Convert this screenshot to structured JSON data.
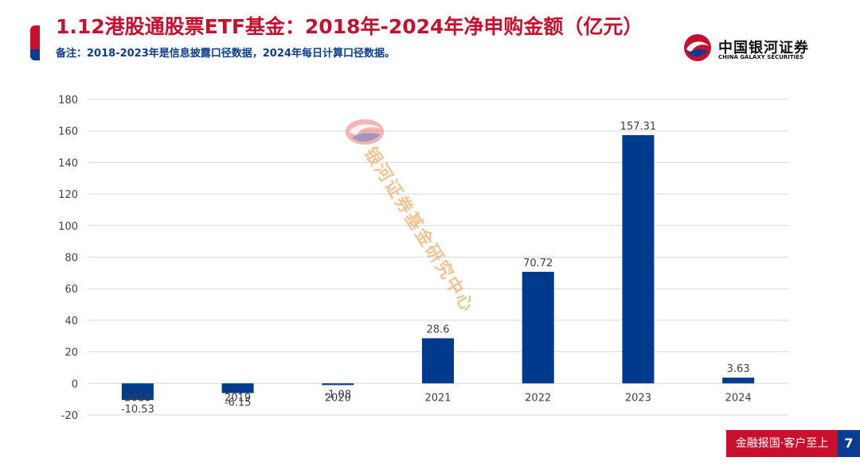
{
  "header": {
    "title": "1.12港股通股票ETF基金：2018年-2024年净申购金额（亿元）",
    "note": "备注：2018-2023年是信息披露口径数据，2024年每日计算口径数据。"
  },
  "logo": {
    "name_cn": "中国银河证券",
    "name_en": "CHINA GALAXY SECURITIES",
    "icon": "galaxy-logo-icon"
  },
  "watermark": {
    "text": "银河证券基金研究中心"
  },
  "footer": {
    "slogan": "金融报国·客户至上",
    "page": "7"
  },
  "colors": {
    "bar": "#003a8c",
    "title_red": "#c8102e",
    "note_blue": "#0a3d8f",
    "grid": "#d9d9d9"
  },
  "chart_data": {
    "type": "bar",
    "title": "",
    "xlabel": "",
    "ylabel": "",
    "categories": [
      "2018",
      "2019",
      "2020",
      "2021",
      "2022",
      "2023",
      "2024"
    ],
    "values": [
      -10.53,
      -6.15,
      -1.08,
      28.6,
      70.72,
      157.31,
      3.63
    ],
    "value_labels": [
      "-10.53",
      "-6.15",
      "-1.08",
      "28.6",
      "70.72",
      "157.31",
      "3.63"
    ],
    "ylim": [
      -20,
      180
    ],
    "yticks": [
      -20,
      0,
      20,
      40,
      60,
      80,
      100,
      120,
      140,
      160,
      180
    ],
    "ytick_labels": [
      "-20",
      "0",
      "20",
      "40",
      "60",
      "80",
      "100",
      "120",
      "140",
      "160",
      "180"
    ],
    "grid": true,
    "legend": "none"
  }
}
